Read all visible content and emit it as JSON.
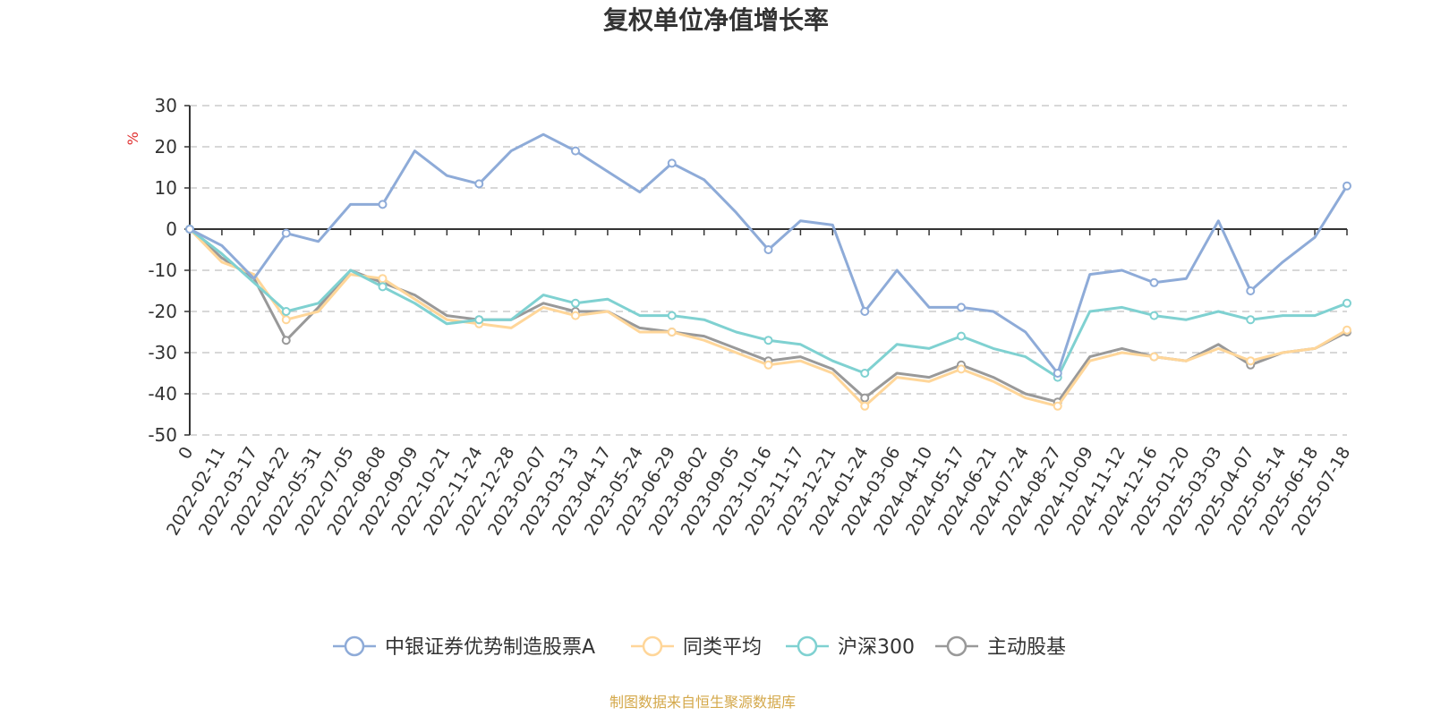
{
  "chart_data": {
    "type": "line",
    "title": "复权单位净值增长率",
    "y_unit": "%",
    "ylim": [
      -50,
      30
    ],
    "yticks": [
      30,
      20,
      10,
      0,
      -10,
      -20,
      -30,
      -40,
      -50
    ],
    "grid": true,
    "legend_position": "bottom",
    "x_labels": [
      "0",
      "2022-02-11",
      "2022-03-17",
      "2022-04-22",
      "2022-05-31",
      "2022-07-05",
      "2022-08-08",
      "2022-09-09",
      "2022-10-21",
      "2022-11-24",
      "2022-12-28",
      "2023-02-07",
      "2023-03-13",
      "2023-04-17",
      "2023-05-24",
      "2023-06-29",
      "2023-08-02",
      "2023-09-05",
      "2023-10-16",
      "2023-11-17",
      "2023-12-21",
      "2024-01-24",
      "2024-03-06",
      "2024-04-10",
      "2024-05-17",
      "2024-06-21",
      "2024-07-24",
      "2024-08-27",
      "2024-10-09",
      "2024-11-12",
      "2024-12-16",
      "2025-01-20",
      "2025-03-03",
      "2025-04-07",
      "2025-05-14",
      "2025-06-18",
      "2025-07-18"
    ],
    "series": [
      {
        "name": "中银证券优势制造股票A",
        "color": "#8eabd8",
        "values": [
          0,
          -4,
          -12,
          -1,
          -3,
          6,
          6,
          19,
          13,
          11,
          19,
          23,
          19,
          14,
          9,
          16,
          12,
          4,
          -5,
          2,
          1,
          -20,
          -10,
          -19,
          -19,
          -20,
          -25,
          -35,
          -11,
          -10,
          -13,
          -12,
          2,
          -15,
          -8,
          -2,
          10.5
        ]
      },
      {
        "name": "同类平均",
        "color": "#ffd699",
        "values": [
          0,
          -8,
          -11,
          -22,
          -20,
          -11,
          -12,
          -17,
          -22,
          -23,
          -24,
          -19,
          -21,
          -20,
          -25,
          -25,
          -27,
          -30,
          -33,
          -32,
          -35,
          -43,
          -36,
          -37,
          -34,
          -37,
          -41,
          -43,
          -32,
          -30,
          -31,
          -32,
          -29,
          -32,
          -30,
          -29,
          -24.5
        ]
      },
      {
        "name": "沪深300",
        "color": "#7fd1d1",
        "values": [
          0,
          -6,
          -13,
          -20,
          -18,
          -10,
          -14,
          -18,
          -23,
          -22,
          -22,
          -16,
          -18,
          -17,
          -21,
          -21,
          -22,
          -25,
          -27,
          -28,
          -32,
          -35,
          -28,
          -29,
          -26,
          -29,
          -31,
          -36,
          -20,
          -19,
          -21,
          -22,
          -20,
          -22,
          -21,
          -21,
          -18
        ]
      },
      {
        "name": "主动股基",
        "color": "#999999",
        "values": [
          0,
          -7,
          -12,
          -27,
          -19,
          -10,
          -13,
          -16,
          -21,
          -22,
          -22,
          -18,
          -20,
          -20,
          -24,
          -25,
          -26,
          -29,
          -32,
          -31,
          -34,
          -41,
          -35,
          -36,
          -33,
          -36,
          -40,
          -42,
          -31,
          -29,
          -31,
          -32,
          -28,
          -33,
          -30,
          -29,
          -25
        ]
      }
    ]
  },
  "source_text": "制图数据来自恒生聚源数据库",
  "colors": {
    "axis": "#333333",
    "grid": "#cccccc",
    "unit": "#e03030",
    "source": "#d4a84a"
  }
}
